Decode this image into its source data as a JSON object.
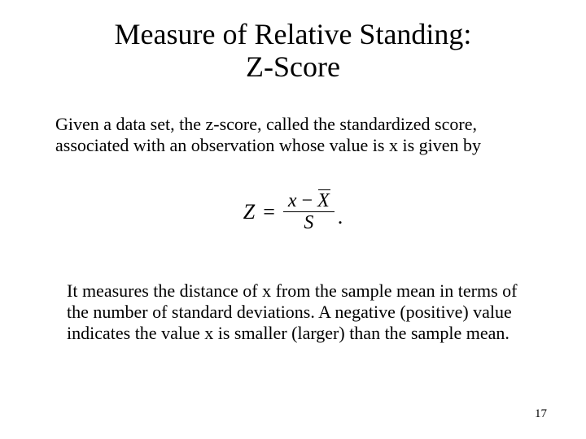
{
  "title_line1": "Measure of Relative Standing:",
  "title_line2": "Z-Score",
  "paragraph1": "Given a data set, the z-score, called the standardized score, associated with an observation whose value is x is given by",
  "formula": {
    "lhs": "Z",
    "eq": "=",
    "numerator_x": "x",
    "numerator_minus": "−",
    "numerator_Xbar": "X",
    "denominator": "S",
    "trailing": "."
  },
  "paragraph2": "It measures the distance of x from the sample mean in terms of the number of standard deviations. A negative (positive) value indicates the value x is smaller (larger) than the sample mean.",
  "page_number": "17",
  "colors": {
    "background": "#ffffff",
    "text": "#000000"
  },
  "fonts": {
    "family": "Times New Roman",
    "title_size_pt": 36,
    "body_size_pt": 22,
    "formula_size_pt": 26,
    "pagenum_size_pt": 15
  }
}
